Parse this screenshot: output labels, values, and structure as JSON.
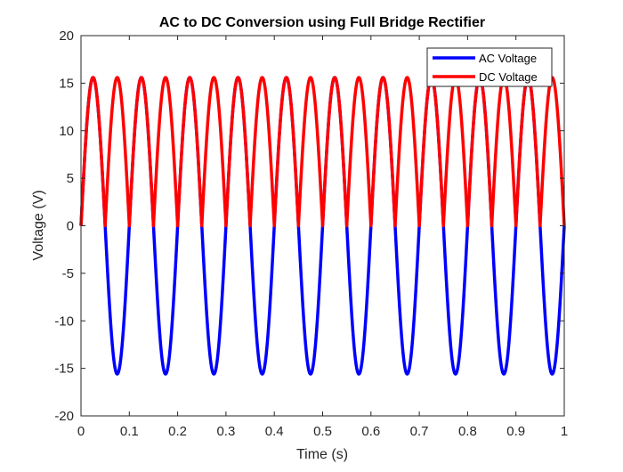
{
  "chart_data": {
    "type": "line",
    "title": "AC to DC Conversion using Full Bridge Rectifier",
    "xlabel": "Time (s)",
    "ylabel": "Voltage (V)",
    "xlim": [
      0,
      1
    ],
    "ylim": [
      -20,
      20
    ],
    "x_ticks": [
      0,
      0.1,
      0.2,
      0.3,
      0.4,
      0.5,
      0.6,
      0.7,
      0.8,
      0.9,
      1
    ],
    "x_tick_labels": [
      "0",
      "0.1",
      "0.2",
      "0.3",
      "0.4",
      "0.5",
      "0.6",
      "0.7",
      "0.8",
      "0.9",
      "1"
    ],
    "y_ticks": [
      -20,
      -15,
      -10,
      -5,
      0,
      5,
      10,
      15,
      20
    ],
    "y_tick_labels": [
      "-20",
      "-15",
      "-10",
      "-5",
      "0",
      "5",
      "10",
      "15",
      "20"
    ],
    "grid": false,
    "legend_position": "top-right",
    "series": [
      {
        "name": "AC Voltage",
        "color": "#0000ff",
        "function": "sine",
        "amplitude": 15.6,
        "frequency_hz": 10,
        "x_start": 0,
        "x_end": 1,
        "samples": 1001
      },
      {
        "name": "DC Voltage",
        "color": "#ff0000",
        "function": "abs-sine",
        "amplitude": 15.6,
        "frequency_hz": 10,
        "x_start": 0,
        "x_end": 1,
        "samples": 1001
      }
    ]
  }
}
